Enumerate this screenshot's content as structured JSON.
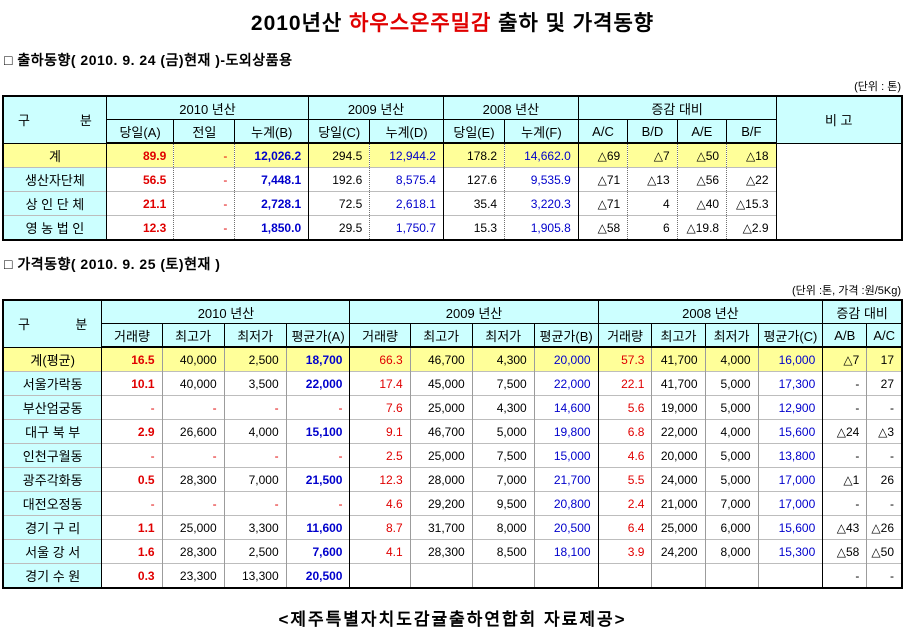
{
  "title": {
    "prefix": "2010년산 ",
    "highlight": "하우스온주밀감",
    "suffix": " 출하 및 가격동향"
  },
  "colors": {
    "red": "#e00000",
    "blue": "#0000cc",
    "cyan": "#ccffff",
    "yellow": "#ffff99"
  },
  "shipment": {
    "section_label": "□ 출하동향( 2010.  9.  24 (금)현재 )-도외상품용",
    "unit_label": "(단위 : 톤)",
    "h_gubun_left": "구",
    "h_gubun_right": "분",
    "h_2010": "2010 년산",
    "h_2009": "2009 년산",
    "h_2008": "2008 년산",
    "h_ratio": "증감 대비",
    "h_bigo": "비  고",
    "h_cols": [
      "당일(A)",
      "전일",
      "누계(B)",
      "당일(C)",
      "누계(D)",
      "당일(E)",
      "누계(F)",
      "A/C",
      "B/D",
      "A/E",
      "B/F"
    ],
    "rows": [
      {
        "label": "계",
        "total": true,
        "cells": [
          "89.9",
          "-",
          "12,026.2",
          "294.5",
          "12,944.2",
          "178.2",
          "14,662.0",
          "△69",
          "△7",
          "△50",
          "△18"
        ]
      },
      {
        "label": "생산자단체",
        "cells": [
          "56.5",
          "-",
          "7,448.1",
          "192.6",
          "8,575.4",
          "127.6",
          "9,535.9",
          "△71",
          "△13",
          "△56",
          "△22"
        ]
      },
      {
        "label": "상 인 단 체",
        "cells": [
          "21.1",
          "-",
          "2,728.1",
          "72.5",
          "2,618.1",
          "35.4",
          "3,220.3",
          "△71",
          "4",
          "△40",
          "△15.3"
        ]
      },
      {
        "label": "영 농 법 인",
        "cells": [
          "12.3",
          "-",
          "1,850.0",
          "29.5",
          "1,750.7",
          "15.3",
          "1,905.8",
          "△58",
          "6",
          "△19.8",
          "△2.9"
        ]
      }
    ]
  },
  "price": {
    "section_label": "□ 가격동향( 2010.  9.  25 (토)현재 )",
    "unit_label": "(단위 :톤, 가격 :원/5Kg)",
    "h_gubun_left": "구",
    "h_gubun_right": "분",
    "h_2010": "2010 년산",
    "h_2009": "2009 년산",
    "h_2008": "2008 년산",
    "h_ratio": "증감 대비",
    "h_cols": [
      "거래량",
      "최고가",
      "최저가",
      "평균가(A)",
      "거래량",
      "최고가",
      "최저가",
      "평균가(B)",
      "거래량",
      "최고가",
      "최저가",
      "평균가(C)",
      "A/B",
      "A/C"
    ],
    "rows": [
      {
        "label": "계(평균)",
        "total": true,
        "cells": [
          "16.5",
          "40,000",
          "2,500",
          "18,700",
          "66.3",
          "46,700",
          "4,300",
          "20,000",
          "57.3",
          "41,700",
          "4,000",
          "16,000",
          "△7",
          "17"
        ]
      },
      {
        "label": "서울가락동",
        "cells": [
          "10.1",
          "40,000",
          "3,500",
          "22,000",
          "17.4",
          "45,000",
          "7,500",
          "22,000",
          "22.1",
          "41,700",
          "5,000",
          "17,300",
          "-",
          "27"
        ]
      },
      {
        "label": "부산엄궁동",
        "cells": [
          "-",
          "-",
          "-",
          "-",
          "7.6",
          "25,000",
          "4,300",
          "14,600",
          "5.6",
          "19,000",
          "5,000",
          "12,900",
          "-",
          "-"
        ]
      },
      {
        "label": "대구 북 부",
        "cells": [
          "2.9",
          "26,600",
          "4,000",
          "15,100",
          "9.1",
          "46,700",
          "5,000",
          "19,800",
          "6.8",
          "22,000",
          "4,000",
          "15,600",
          "△24",
          "△3"
        ]
      },
      {
        "label": "인천구월동",
        "cells": [
          "-",
          "-",
          "-",
          "-",
          "2.5",
          "25,000",
          "7,500",
          "15,000",
          "4.6",
          "20,000",
          "5,000",
          "13,800",
          "-",
          "-"
        ]
      },
      {
        "label": "광주각화동",
        "cells": [
          "0.5",
          "28,300",
          "7,000",
          "21,500",
          "12.3",
          "28,000",
          "7,000",
          "21,700",
          "5.5",
          "24,000",
          "5,000",
          "17,000",
          "△1",
          "26"
        ]
      },
      {
        "label": "대전오정동",
        "cells": [
          "-",
          "-",
          "-",
          "-",
          "4.6",
          "29,200",
          "9,500",
          "20,800",
          "2.4",
          "21,000",
          "7,000",
          "17,000",
          "-",
          "-"
        ]
      },
      {
        "label": "경기 구 리",
        "cells": [
          "1.1",
          "25,000",
          "3,300",
          "11,600",
          "8.7",
          "31,700",
          "8,000",
          "20,500",
          "6.4",
          "25,000",
          "6,000",
          "15,600",
          "△43",
          "△26"
        ]
      },
      {
        "label": "서울 강 서",
        "cells": [
          "1.6",
          "28,300",
          "2,500",
          "7,600",
          "4.1",
          "28,300",
          "8,500",
          "18,100",
          "3.9",
          "24,200",
          "8,000",
          "15,300",
          "△58",
          "△50"
        ]
      },
      {
        "label": "경기 수 원",
        "cells": [
          "0.3",
          "23,300",
          "13,300",
          "20,500",
          "",
          "",
          "",
          "",
          "",
          "",
          "",
          "",
          "-",
          "-"
        ]
      }
    ]
  },
  "footer": "<제주특별자치도감귤출하연합회 자료제공>"
}
